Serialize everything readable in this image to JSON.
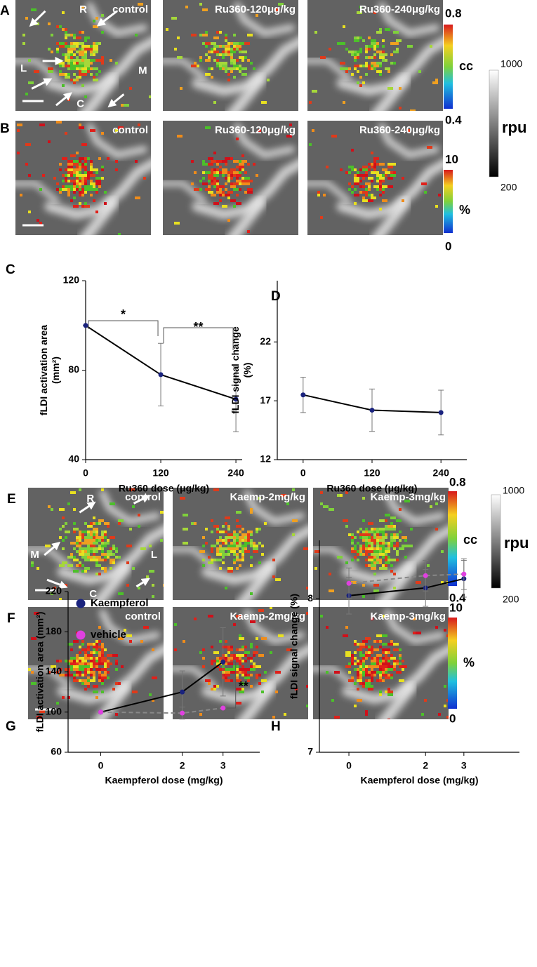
{
  "image_rows": [
    {
      "letter": "A",
      "labels": [
        "control",
        "Ru360-120μg/kg",
        "Ru360-240μg/kg"
      ],
      "orientation": [
        "R",
        "L",
        "M",
        "C"
      ],
      "colorbar": [
        "0.8",
        "cc",
        "0.4"
      ]
    },
    {
      "letter": "B",
      "labels": [
        "control",
        "Ru360-120μg/kg",
        "Ru360-240μg/kg"
      ],
      "colorbar": [
        "10",
        "%",
        "0"
      ]
    },
    {
      "letter": "E",
      "labels": [
        "control",
        "Kaemp-2mg/kg",
        "Kaemp-3mg/kg"
      ],
      "orientation": [
        "R",
        "M",
        "L",
        "C"
      ],
      "colorbar": [
        "0.8",
        "cc",
        "0.4"
      ]
    },
    {
      "letter": "F",
      "labels": [
        "control",
        "Kaemp-2mg/kg",
        "Kaemp-3mg/kg"
      ],
      "colorbar": [
        "10",
        "%",
        "0"
      ]
    }
  ],
  "gray_scales": [
    [
      "1000",
      "rpu",
      "200"
    ],
    [
      "1000",
      "rpu",
      "200"
    ]
  ],
  "chart_data": [
    {
      "type": "line",
      "panel_label": "C",
      "ylabel": [
        "fLDI activation area",
        "(mm²)"
      ],
      "xlabel": "Ru360 dose (μg/kg)",
      "x": [
        0,
        120,
        240
      ],
      "xlim": [
        0,
        250
      ],
      "xticks": [
        0,
        120,
        240
      ],
      "ylim": [
        40,
        120
      ],
      "yticks": [
        40,
        80,
        120
      ],
      "series": [
        {
          "color": "#1a237e",
          "line_color": "#000000",
          "values": [
            100,
            78,
            67
          ],
          "errors": [
            0,
            14,
            14.5
          ]
        }
      ],
      "annotations": [
        {
          "text": "*",
          "x": [
            0,
            120
          ]
        },
        {
          "text": "**",
          "x": [
            120,
            240
          ]
        }
      ]
    },
    {
      "type": "line",
      "panel_label": "D",
      "ylabel": [
        "fLDI signal change",
        "(%)"
      ],
      "xlabel": "Ru360 dose (μg/kg)",
      "x": [
        0,
        120,
        240
      ],
      "xlim": [
        -45,
        285
      ],
      "xticks": [
        0,
        120,
        240
      ],
      "ylim": [
        12,
        27.2
      ],
      "yticks": [
        12,
        17,
        22
      ],
      "series": [
        {
          "color": "#1a237e",
          "line_color": "#000000",
          "values": [
            17.5,
            16.2,
            16
          ],
          "errors": [
            1.5,
            1.8,
            1.9
          ]
        }
      ]
    },
    {
      "type": "line",
      "panel_label": "G",
      "ylabel": [
        "fLDI activation area (mm²)"
      ],
      "xlabel": "Kaempferol dose (mg/kg)",
      "x": [
        0,
        2,
        3
      ],
      "xlim": [
        -0.8,
        3.9
      ],
      "xticks": [
        0,
        2,
        3
      ],
      "ylim": [
        60,
        220
      ],
      "yticks": [
        60,
        100,
        140,
        180,
        220
      ],
      "legend": "upper-left",
      "series": [
        {
          "name": "Kaempferol",
          "color": "#1a237e",
          "line_color": "#000000",
          "line_style": "solid",
          "values": [
            100,
            120,
            150
          ],
          "errors": [
            0,
            21,
            34
          ]
        },
        {
          "name": "vehicle",
          "color": "#e040e0",
          "line_color": "#888888",
          "line_style": "dashed",
          "values": [
            100,
            99,
            104
          ],
          "errors": [
            0,
            6,
            0
          ]
        }
      ],
      "annotations": [
        {
          "text": "**",
          "x": 3
        }
      ]
    },
    {
      "type": "line",
      "panel_label": "H",
      "ylabel": [
        "fLDI signal change (%)"
      ],
      "xlabel": "Kaempferol dose (mg/kg)",
      "x": [
        0,
        2,
        3
      ],
      "xlim": [
        -0.77,
        4.45
      ],
      "xticks": [
        0,
        2,
        3
      ],
      "ylim": [
        7,
        8.38
      ],
      "yticks": [
        7,
        8
      ],
      "series": [
        {
          "color": "#1a237e",
          "line_color": "#000000",
          "line_style": "solid",
          "values": [
            8.02,
            8.07,
            8.13
          ],
          "errors": [
            0.12,
            0.12,
            0.12
          ]
        },
        {
          "color": "#e040e0",
          "line_color": "#888888",
          "line_style": "dashed",
          "values": [
            8.1,
            8.15,
            8.16
          ],
          "errors": [
            0.1,
            0.1,
            0.1
          ]
        }
      ]
    }
  ]
}
